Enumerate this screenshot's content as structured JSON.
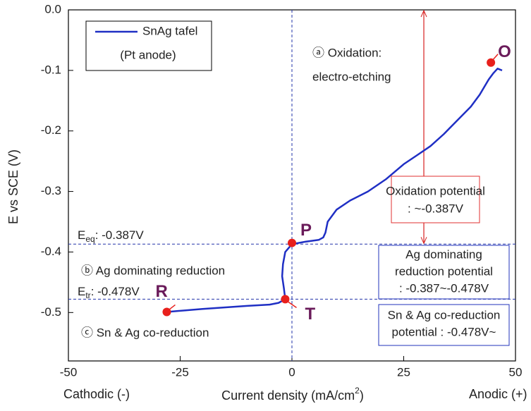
{
  "chart_data": {
    "type": "line",
    "xlabel": {
      "main": "Current density (mA/cm",
      "sup": "2",
      "end": ")"
    },
    "ylabel": "E vs SCE (V)",
    "xlim": [
      -50,
      50
    ],
    "ylim": [
      -0.58,
      0
    ],
    "xticks": [
      -50,
      -25,
      0,
      25,
      50
    ],
    "yticks": [
      {
        "value": 0,
        "label": "0.0"
      },
      -0.1,
      -0.2,
      -0.3,
      -0.4,
      -0.5
    ],
    "x_side_labels": [
      "Cathodic (-)",
      "Anodic (+)"
    ],
    "series": [
      {
        "name": "SnAg tafel",
        "color": "#1f2fc4",
        "x": [
          -28,
          -20,
          -10,
          -5,
          -3,
          -1.5,
          -1.8,
          -2.2,
          -2.0,
          -1.5,
          0,
          3,
          6,
          7,
          7.5,
          8,
          10,
          13,
          17,
          21,
          25,
          28,
          31,
          34,
          36,
          38,
          40,
          42,
          44,
          45,
          46,
          47
        ],
        "values": [
          -0.499,
          -0.494,
          -0.489,
          -0.487,
          -0.484,
          -0.478,
          -0.46,
          -0.44,
          -0.42,
          -0.4,
          -0.387,
          -0.383,
          -0.38,
          -0.376,
          -0.368,
          -0.35,
          -0.33,
          -0.315,
          -0.3,
          -0.28,
          -0.255,
          -0.24,
          -0.225,
          -0.205,
          -0.19,
          -0.175,
          -0.16,
          -0.14,
          -0.115,
          -0.105,
          -0.097,
          -0.1
        ]
      }
    ],
    "legend_note": "(Pt anode)",
    "marker_color": "#e8201c",
    "points": [
      {
        "label": "O",
        "x": 44.5,
        "y": -0.087
      },
      {
        "label": "P",
        "x": 0,
        "y": -0.385
      },
      {
        "label": "T",
        "x": -1.5,
        "y": -0.478
      },
      {
        "label": "R",
        "x": -28,
        "y": -0.499
      }
    ],
    "vline": 0,
    "reference_lines": [
      {
        "value": -0.387,
        "main": "E",
        "sub": "eq",
        "rest": ": -0.387V"
      },
      {
        "value": -0.478,
        "main": "E",
        "sub": "tr",
        "rest": ": -0.478V"
      }
    ],
    "arrow": {
      "x": 29.5,
      "from": 0,
      "to": -0.387
    },
    "annotations": [
      "ⓐ Oxidation:",
      "electro-etching",
      "ⓑ Ag dominating reduction",
      "ⓒ Sn & Ag co-reduction"
    ],
    "boxes": [
      {
        "color": "red",
        "lines": [
          "Oxidation potential",
          ": ~-0.387V"
        ]
      },
      {
        "color": "blue",
        "lines": [
          "Ag dominating",
          "reduction potential",
          ": -0.387~-0.478V"
        ]
      },
      {
        "color": "blue",
        "lines": [
          "Sn & Ag co-reduction",
          "potential : -0.478V~"
        ]
      }
    ]
  }
}
